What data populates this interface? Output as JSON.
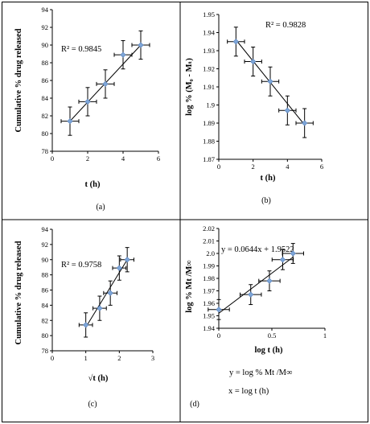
{
  "chart_data": [
    {
      "type": "scatter",
      "caption": "(a)",
      "xlabel": "t (h)",
      "ylabel": "Cumulative % drug released",
      "xlim": [
        0,
        6
      ],
      "ylim": [
        78,
        94
      ],
      "xticks": [
        0,
        2,
        4,
        6
      ],
      "yticks": [
        78,
        80,
        82,
        84,
        86,
        88,
        90,
        92,
        94
      ],
      "annotation": "R² = 0.9845",
      "x": [
        1,
        2,
        3,
        4,
        5
      ],
      "y": [
        81.4,
        83.6,
        85.6,
        88.9,
        90.0
      ],
      "xerr": 0.5,
      "yerr": 1.6,
      "fit": [
        [
          1,
          81.4
        ],
        [
          5,
          90.0
        ]
      ]
    },
    {
      "type": "scatter",
      "caption": "(b)",
      "xlabel": "t (h)",
      "ylabel": "log % (M₀ - Mₜ)",
      "xlim": [
        0,
        6
      ],
      "ylim": [
        1.87,
        1.95
      ],
      "xticks": [
        0,
        2,
        4,
        6
      ],
      "yticks": [
        1.87,
        1.88,
        1.89,
        1.9,
        1.91,
        1.92,
        1.93,
        1.94,
        1.95
      ],
      "annotation": "R² = 0.9828",
      "x": [
        1,
        2,
        3,
        4,
        5
      ],
      "y": [
        1.935,
        1.924,
        1.913,
        1.897,
        1.89
      ],
      "xerr": 0.5,
      "yerr": 0.008,
      "fit": [
        [
          1,
          1.936
        ],
        [
          5,
          1.889
        ]
      ]
    },
    {
      "type": "scatter",
      "caption": "(c)",
      "xlabel": "√t (h)",
      "ylabel": "Cumulative % drug released",
      "xlim": [
        0,
        3
      ],
      "ylim": [
        78,
        94
      ],
      "xticks": [
        0,
        1,
        2,
        3
      ],
      "yticks": [
        78,
        80,
        82,
        84,
        86,
        88,
        90,
        92,
        94
      ],
      "annotation": "R² = 0.9758",
      "x": [
        1.0,
        1.414,
        1.732,
        2.0,
        2.236
      ],
      "y": [
        81.4,
        83.6,
        85.6,
        88.9,
        90.0
      ],
      "xerr": 0.2,
      "yerr": 1.6,
      "fit": [
        [
          1.0,
          81.1
        ],
        [
          2.236,
          90.0
        ]
      ]
    },
    {
      "type": "scatter",
      "caption": "(d)",
      "xlabel": "log t (h)",
      "ylabel": "log % Mt /M∞",
      "xlim": [
        0,
        1
      ],
      "ylim": [
        1.94,
        2.02
      ],
      "xticks": [
        0,
        0.5,
        1
      ],
      "yticks": [
        1.94,
        1.95,
        1.96,
        1.97,
        1.98,
        1.99,
        2.0,
        2.01,
        2.02
      ],
      "annotation": "y = 0.0644x + 1.9522",
      "x": [
        0,
        0.301,
        0.477,
        0.602,
        0.699
      ],
      "y": [
        1.955,
        1.967,
        1.978,
        1.995,
        2.0
      ],
      "xerr": 0.1,
      "yerr": 0.008,
      "fit": [
        [
          0,
          1.952
        ],
        [
          0.699,
          1.997
        ]
      ],
      "notes": [
        "y = log % Mt /M∞",
        "x = log t (h)"
      ]
    }
  ]
}
